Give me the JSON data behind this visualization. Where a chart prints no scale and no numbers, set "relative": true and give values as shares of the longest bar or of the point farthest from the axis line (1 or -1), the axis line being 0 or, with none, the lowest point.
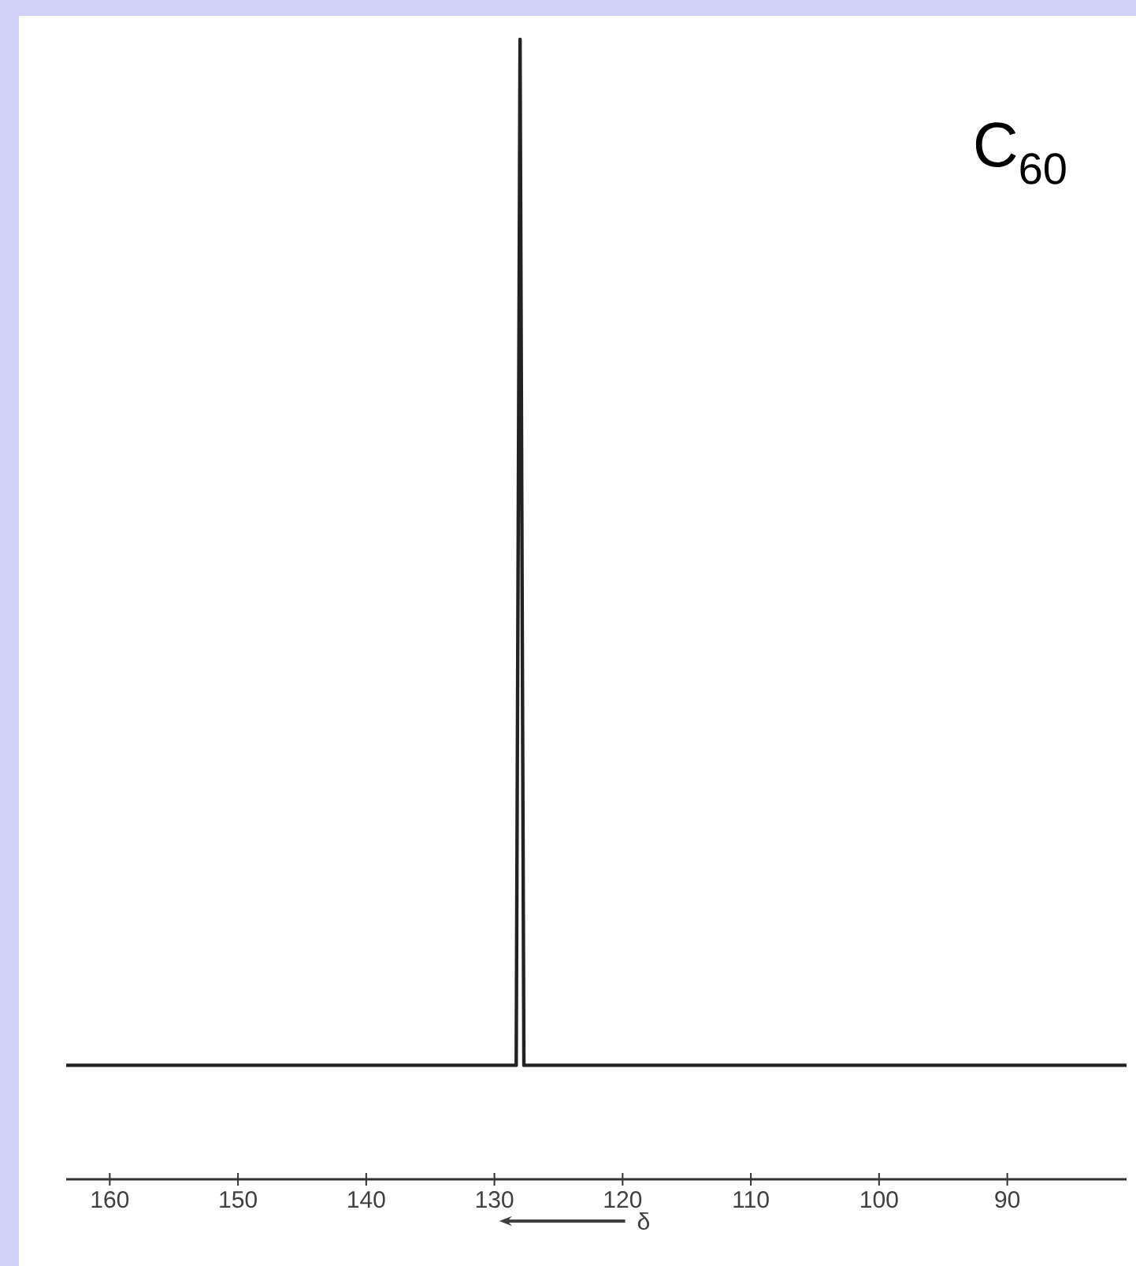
{
  "chart_data": {
    "type": "line",
    "x": [
      163.4,
      150,
      140,
      128.3,
      128,
      127.7,
      115,
      100,
      80.7
    ],
    "values": [
      0.1,
      0.1,
      0.1,
      0.1,
      1,
      0.1,
      0.1,
      0.1,
      0.1
    ],
    "color": "#222222",
    "relative": true,
    "xlim": [
      163.4,
      80.7
    ],
    "xticks": [
      160,
      150,
      140,
      130,
      120,
      110,
      100,
      90
    ],
    "xlabel": "δ",
    "annotations": [
      "C$_{60}$"
    ]
  }
}
